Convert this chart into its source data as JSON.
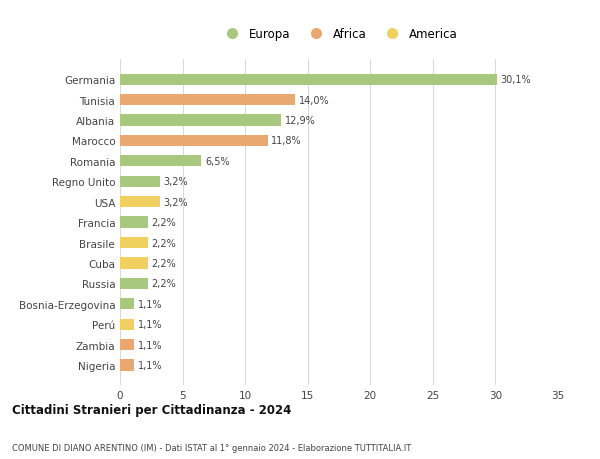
{
  "countries": [
    "Germania",
    "Tunisia",
    "Albania",
    "Marocco",
    "Romania",
    "Regno Unito",
    "USA",
    "Francia",
    "Brasile",
    "Cuba",
    "Russia",
    "Bosnia-Erzegovina",
    "Perú",
    "Zambia",
    "Nigeria"
  ],
  "values": [
    30.1,
    14.0,
    12.9,
    11.8,
    6.5,
    3.2,
    3.2,
    2.2,
    2.2,
    2.2,
    2.2,
    1.1,
    1.1,
    1.1,
    1.1
  ],
  "labels": [
    "30,1%",
    "14,0%",
    "12,9%",
    "11,8%",
    "6,5%",
    "3,2%",
    "3,2%",
    "2,2%",
    "2,2%",
    "2,2%",
    "2,2%",
    "1,1%",
    "1,1%",
    "1,1%",
    "1,1%"
  ],
  "continents": [
    "Europa",
    "Africa",
    "Europa",
    "Africa",
    "Europa",
    "Europa",
    "America",
    "Europa",
    "America",
    "America",
    "Europa",
    "Europa",
    "America",
    "Africa",
    "Africa"
  ],
  "colors": {
    "Europa": "#a8c880",
    "Africa": "#e8a870",
    "America": "#f0d060"
  },
  "title": "Cittadini Stranieri per Cittadinanza - 2024",
  "subtitle": "COMUNE DI DIANO ARENTINO (IM) - Dati ISTAT al 1° gennaio 2024 - Elaborazione TUTTITALIA.IT",
  "xlim": [
    0,
    35
  ],
  "xticks": [
    0,
    5,
    10,
    15,
    20,
    25,
    30,
    35
  ],
  "background_color": "#ffffff",
  "grid_color": "#d8d8d8",
  "bar_height": 0.55
}
